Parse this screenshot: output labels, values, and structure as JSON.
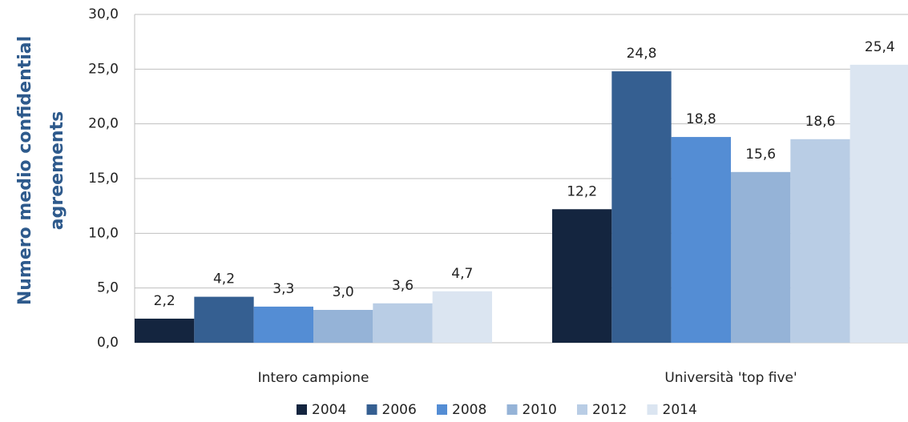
{
  "chart_data": {
    "type": "bar",
    "y_label": [
      "Numero medio confidential",
      "agreements"
    ],
    "categories": [
      "Intero campione",
      "Università 'top five'"
    ],
    "series": [
      {
        "name": "2004",
        "color": "#14253f",
        "values": [
          2.2,
          12.2
        ],
        "value_labels": [
          "2,2",
          "12,2"
        ]
      },
      {
        "name": "2006",
        "color": "#355f91",
        "values": [
          4.2,
          24.8
        ],
        "value_labels": [
          "4,2",
          "24,8"
        ]
      },
      {
        "name": "2008",
        "color": "#548dd4",
        "values": [
          3.3,
          18.8
        ],
        "value_labels": [
          "3,3",
          "18,8"
        ]
      },
      {
        "name": "2010",
        "color": "#95b3d7",
        "values": [
          3.0,
          15.6
        ],
        "value_labels": [
          "3,0",
          "15,6"
        ]
      },
      {
        "name": "2012",
        "color": "#b9cde5",
        "values": [
          3.6,
          18.6
        ],
        "value_labels": [
          "3,6",
          "18,6"
        ]
      },
      {
        "name": "2014",
        "color": "#dbe5f1",
        "values": [
          4.7,
          25.4
        ],
        "value_labels": [
          "4,7",
          "25,4"
        ]
      }
    ],
    "ylim": [
      0,
      30
    ],
    "yticks": [
      {
        "value": 0,
        "label": "0,0"
      },
      {
        "value": 5,
        "label": "5,0"
      },
      {
        "value": 10,
        "label": "10,0"
      },
      {
        "value": 15,
        "label": "15,0"
      },
      {
        "value": 20,
        "label": "20,0"
      },
      {
        "value": 25,
        "label": "25,0"
      },
      {
        "value": 30,
        "label": "30,0"
      }
    ],
    "grid": true,
    "legend": "bottom"
  }
}
